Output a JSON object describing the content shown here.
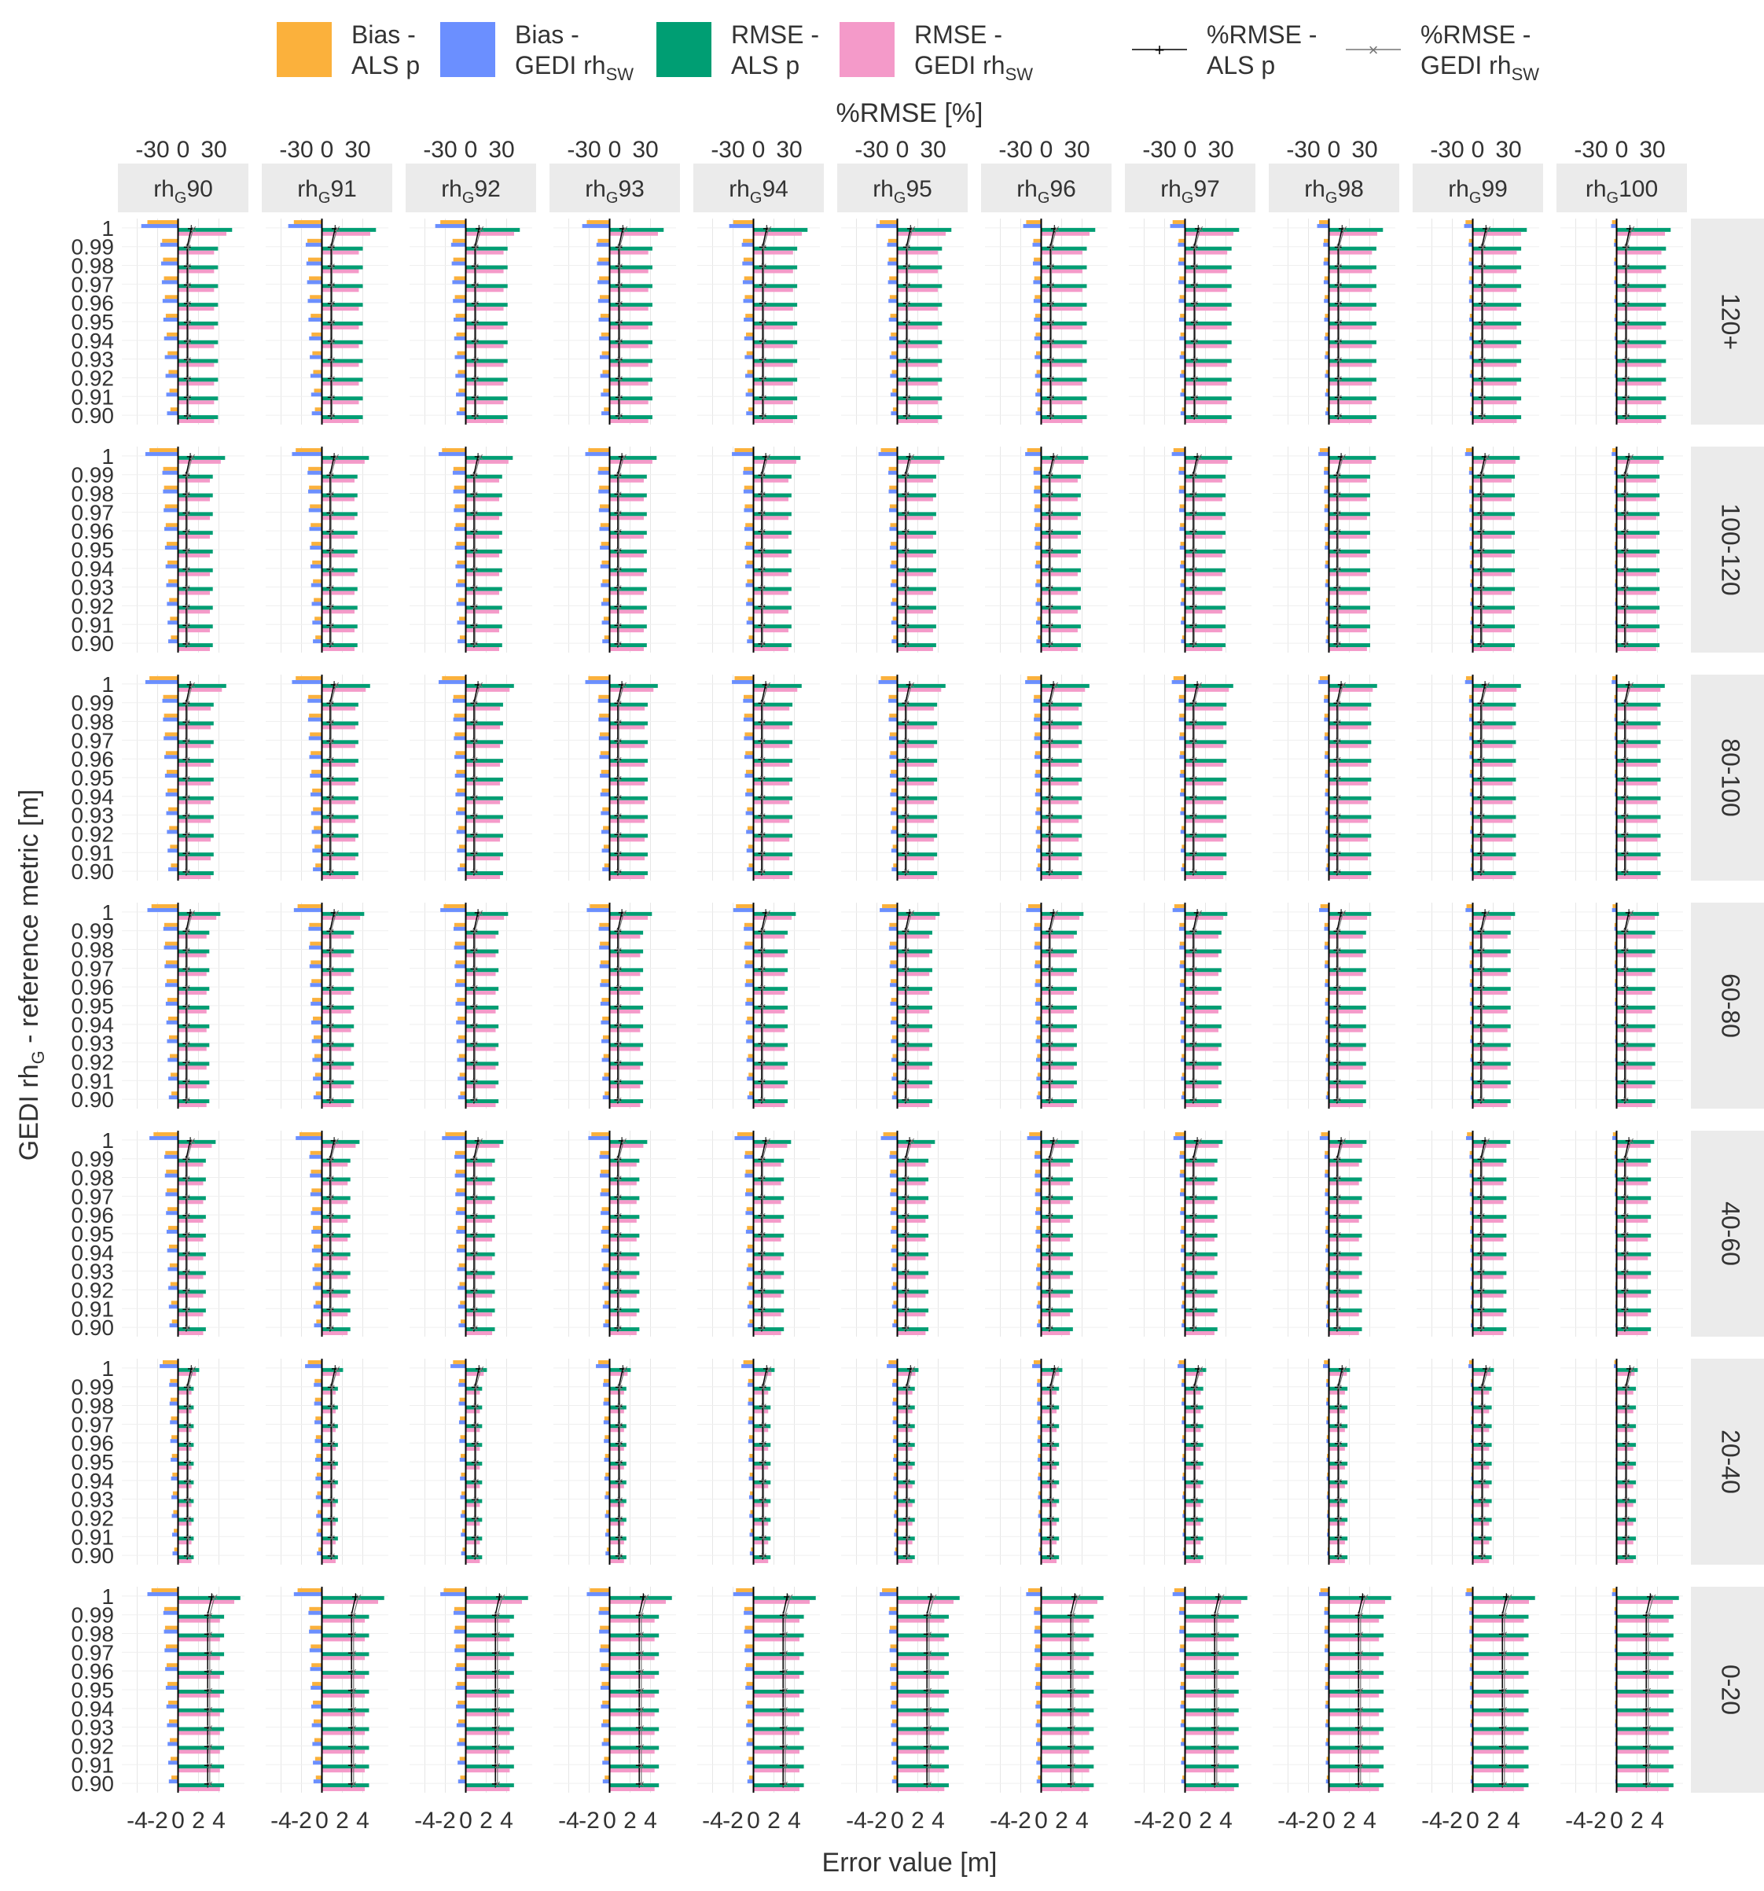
{
  "chart_data": {
    "type": "bar",
    "xlabel": "Error value [m]",
    "x2label": "%RMSE [%]",
    "ylabel_main": "GEDI rh",
    "ylabel_sub": "G",
    "ylabel_tail": " - reference metric [m]",
    "x_ticks": [
      "-4",
      "-2",
      "0",
      "2",
      "4"
    ],
    "x_ticks_top": [
      "-30",
      "0",
      "30"
    ],
    "xlim": [
      -5.5,
      6.5
    ],
    "x2lim": [
      -60,
      60
    ],
    "y_categories": [
      "1",
      "0.99",
      "0.98",
      "0.97",
      "0.96",
      "0.95",
      "0.94",
      "0.93",
      "0.92",
      "0.91",
      "0.90"
    ],
    "legend_position": "top",
    "legend": [
      {
        "name_main": "Bias -",
        "name_sub": "ALS p",
        "kind": "fill",
        "color": "#FBB13C"
      },
      {
        "name_main": "Bias -",
        "name_sub": "GEDI rh",
        "subscript": "SW",
        "kind": "fill",
        "color": "#6B8FFF"
      },
      {
        "name_main": "RMSE -",
        "name_sub": "ALS p",
        "kind": "fill",
        "color": "#009E73"
      },
      {
        "name_main": "RMSE -",
        "name_sub": "GEDI rh",
        "subscript": "SW",
        "kind": "fill",
        "color": "#F49AC9"
      },
      {
        "name_main": "%RMSE -",
        "name_sub": "ALS p",
        "kind": "line-plus",
        "color": "#000000"
      },
      {
        "name_main": "%RMSE -",
        "name_sub": "GEDI rh",
        "subscript": "SW",
        "kind": "line-x",
        "color": "#777777"
      }
    ],
    "col_facets": [
      {
        "prefix": "rh",
        "sub": "G",
        "suffix": "90"
      },
      {
        "prefix": "rh",
        "sub": "G",
        "suffix": "91"
      },
      {
        "prefix": "rh",
        "sub": "G",
        "suffix": "92"
      },
      {
        "prefix": "rh",
        "sub": "G",
        "suffix": "93"
      },
      {
        "prefix": "rh",
        "sub": "G",
        "suffix": "94"
      },
      {
        "prefix": "rh",
        "sub": "G",
        "suffix": "95"
      },
      {
        "prefix": "rh",
        "sub": "G",
        "suffix": "96"
      },
      {
        "prefix": "rh",
        "sub": "G",
        "suffix": "97"
      },
      {
        "prefix": "rh",
        "sub": "G",
        "suffix": "98"
      },
      {
        "prefix": "rh",
        "sub": "G",
        "suffix": "99"
      },
      {
        "prefix": "rh",
        "sub": "G",
        "suffix": "100"
      }
    ],
    "row_facets": [
      {
        "label": "120+",
        "bias_als": -3.0,
        "bias_gedi": -3.6,
        "rmse_als": 4.6,
        "rmse_gedi": 4.3,
        "prmse_als": 4,
        "prmse_gedi": 5
      },
      {
        "label": "100-120",
        "bias_als": -2.8,
        "bias_gedi": -3.2,
        "rmse_als": 4.0,
        "rmse_gedi": 3.8,
        "prmse_als": 3,
        "prmse_gedi": 4
      },
      {
        "label": "80-100",
        "bias_als": -2.8,
        "bias_gedi": -3.2,
        "rmse_als": 4.1,
        "rmse_gedi": 3.9,
        "prmse_als": 3,
        "prmse_gedi": 4
      },
      {
        "label": "60-80",
        "bias_als": -2.6,
        "bias_gedi": -3.0,
        "rmse_als": 3.6,
        "rmse_gedi": 3.4,
        "prmse_als": 3,
        "prmse_gedi": 4
      },
      {
        "label": "40-60",
        "bias_als": -2.4,
        "bias_gedi": -2.8,
        "rmse_als": 3.2,
        "rmse_gedi": 3.0,
        "prmse_als": 3,
        "prmse_gedi": 4
      },
      {
        "label": "20-40",
        "bias_als": -1.5,
        "bias_gedi": -1.8,
        "rmse_als": 1.8,
        "rmse_gedi": 1.6,
        "prmse_als": 4,
        "prmse_gedi": 5
      },
      {
        "label": "0-20",
        "bias_als": -2.6,
        "bias_gedi": -3.0,
        "rmse_als": 5.3,
        "rmse_gedi": 5.0,
        "prmse_als": 24,
        "prmse_gedi": 26
      }
    ]
  }
}
